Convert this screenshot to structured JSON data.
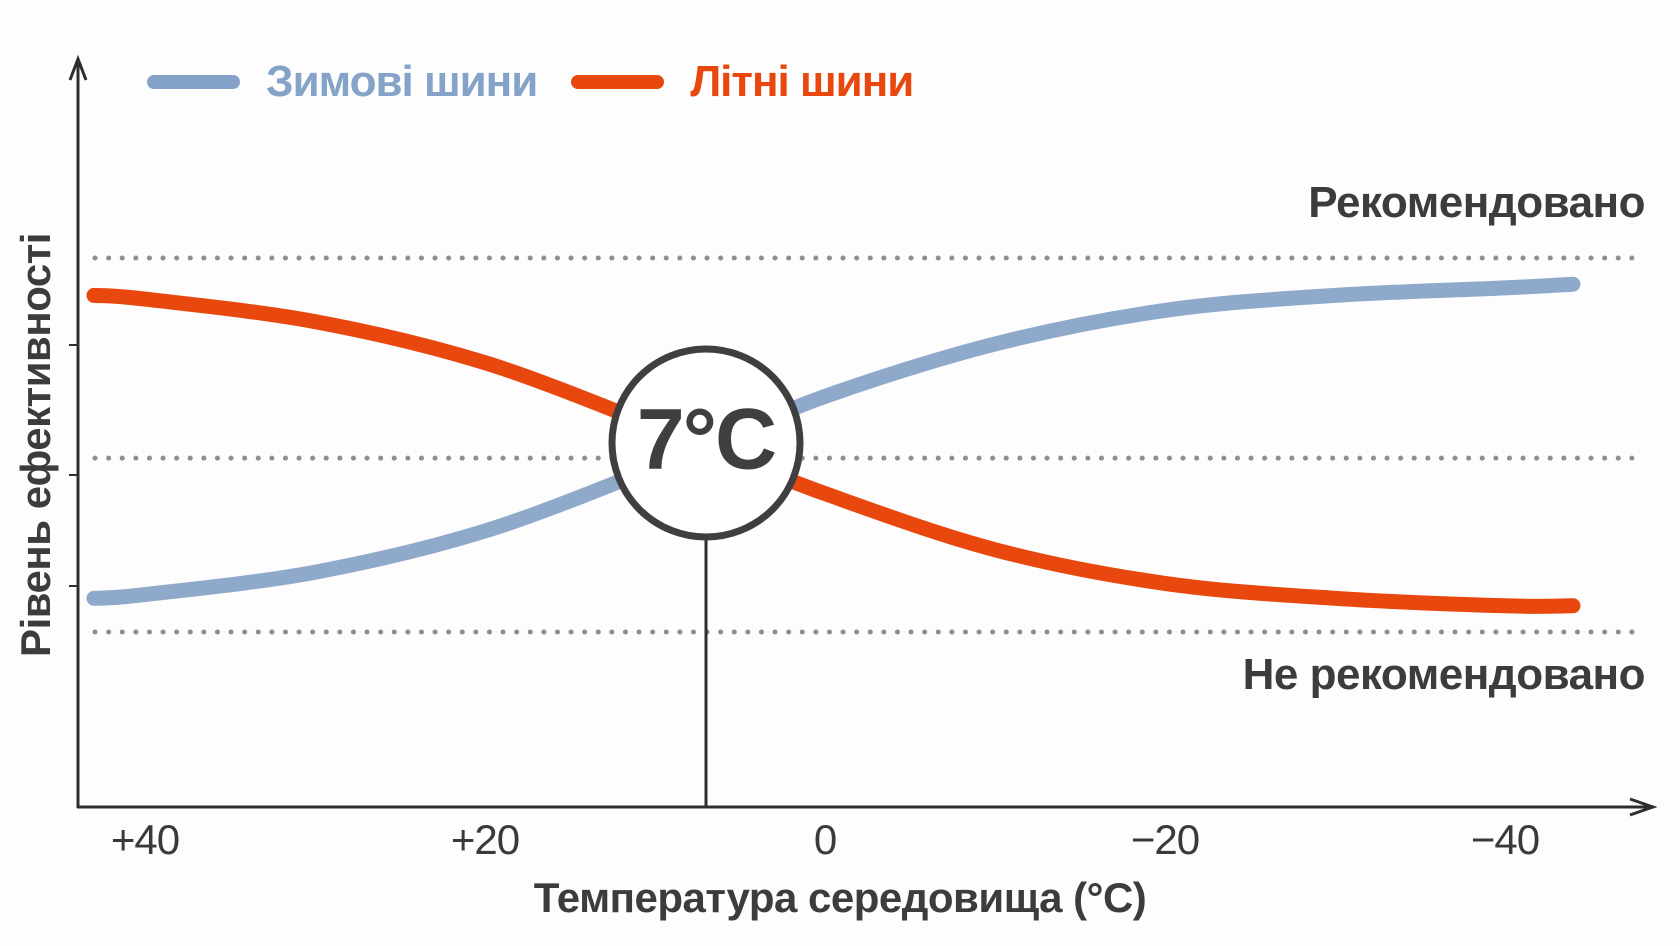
{
  "legend": {
    "items": [
      {
        "label": "Зимові шини",
        "color": "#85a2c8",
        "line_color": "#8fa9cb"
      },
      {
        "label": "Літні шини",
        "color": "#e8470e",
        "line_color": "#e8470e"
      }
    ]
  },
  "labels": {
    "recommended": "Рекомендовано",
    "not_recommended": "Не рекомендовано",
    "crossover": "7°C",
    "y_axis": "Рівень ефективності",
    "x_axis": "Температура середовища (°C)"
  },
  "colors": {
    "winter_line": "#8fa9cb",
    "summer_line": "#e8470e",
    "axis": "#2e2e2e",
    "text": "#3c3c3c",
    "guide_dots": "#8e8e8e",
    "circle_stroke": "#3f3f3f",
    "circle_fill": "#ffffff"
  },
  "chart_data": {
    "type": "line",
    "title": "",
    "xlabel": "Температура середовища (°C)",
    "ylabel": "Рівень ефективності",
    "x_axis": {
      "unit": "°C",
      "direction": "reversed, +40 at left to −40 at right",
      "ticks": [
        {
          "label": "+40",
          "value": 40
        },
        {
          "label": "+20",
          "value": 20
        },
        {
          "label": "0",
          "value": 0
        },
        {
          "label": "−20",
          "value": -20
        },
        {
          "label": "−40",
          "value": -40
        }
      ]
    },
    "y_axis": {
      "unit": "relative effectiveness (unlabeled)",
      "range": [
        0,
        100
      ]
    },
    "guide_lines": [
      {
        "level": 100,
        "label": "Рекомендовано",
        "style": "dotted"
      },
      {
        "level": 46.5,
        "label": "",
        "style": "dotted"
      },
      {
        "level": 0,
        "label": "Не рекомендовано",
        "style": "dotted"
      }
    ],
    "crossover": {
      "temperature_c": 7,
      "label": "7°C"
    },
    "x": [
      43,
      40,
      30,
      20,
      10,
      7,
      0,
      -10,
      -20,
      -30,
      -40,
      -44
    ],
    "series": [
      {
        "name": "Зимові шини",
        "color": "#8fa9cb",
        "values": [
          9,
          10,
          16,
          27,
          44,
          49.6,
          63,
          77,
          86,
          90,
          92,
          93
        ]
      },
      {
        "name": "Літні шини",
        "color": "#e8470e",
        "values": [
          90,
          89,
          83,
          72,
          55,
          49.6,
          37,
          22,
          13,
          9,
          7,
          7
        ]
      }
    ],
    "legend_position": "top-left",
    "grid": "three horizontal dotted guide lines only"
  }
}
